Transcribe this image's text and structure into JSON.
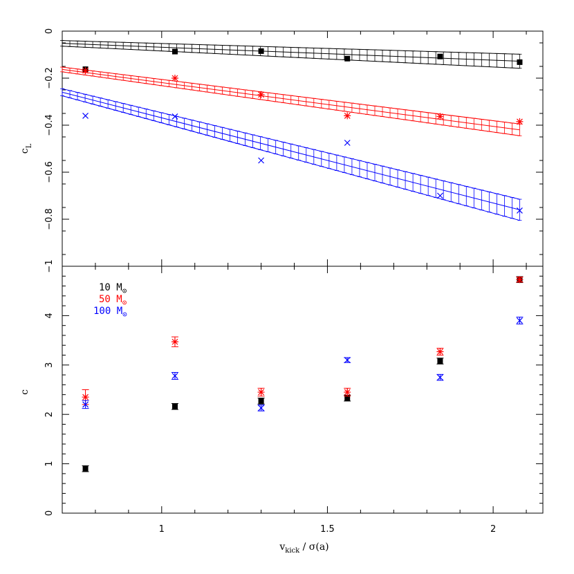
{
  "chart_data": [
    {
      "type": "scatter",
      "panel": "top",
      "ylabel": "c",
      "ylabel_sub": "L",
      "xlim": [
        0.7,
        2.15
      ],
      "ylim": [
        -1.0,
        0.0
      ],
      "xticks": [
        1,
        1.5,
        2
      ],
      "yticks": [
        0,
        -0.2,
        -0.4,
        -0.6,
        -0.8
      ],
      "ytick_labels": [
        "0",
        "−0.2",
        "−0.4",
        "−0.6",
        "−0.8"
      ],
      "bottom_tick_label": "−1",
      "x": [
        0.77,
        1.04,
        1.3,
        1.56,
        1.84,
        2.08
      ],
      "series": [
        {
          "name": "10 M⊙",
          "color": "#000000",
          "marker": "filled-square",
          "values": [
            -0.162,
            -0.087,
            -0.085,
            -0.117,
            -0.108,
            -0.132
          ],
          "fit": {
            "start": [
              0.7,
              -0.052
            ],
            "end": [
              2.08,
              -0.128
            ],
            "band_start": 0.012,
            "band_end": 0.03
          }
        },
        {
          "name": "50 M⊙",
          "color": "#ff0000",
          "marker": "star",
          "values": [
            -0.168,
            -0.2,
            -0.27,
            -0.36,
            -0.363,
            -0.385
          ],
          "fit": {
            "start": [
              0.7,
              -0.163
            ],
            "end": [
              2.08,
              -0.42
            ],
            "band_start": 0.01,
            "band_end": 0.025
          }
        },
        {
          "name": "100 M⊙",
          "color": "#0000ff",
          "marker": "cross",
          "values": [
            -0.36,
            -0.363,
            -0.55,
            -0.475,
            -0.7,
            -0.763
          ],
          "fit": {
            "start": [
              0.7,
              -0.26
            ],
            "end": [
              2.08,
              -0.76
            ],
            "band_start": 0.015,
            "band_end": 0.045
          }
        }
      ]
    },
    {
      "type": "scatter",
      "panel": "bottom",
      "xlabel": "v",
      "xlabel_sub": "kick",
      "xlabel_rest": " / σ(a)",
      "ylabel": "c",
      "xlim": [
        0.7,
        2.15
      ],
      "ylim": [
        0,
        5
      ],
      "xticks": [
        1,
        1.5,
        2
      ],
      "xtick_labels": [
        "1",
        "1.5",
        "2"
      ],
      "yticks": [
        0,
        1,
        2,
        3,
        4
      ],
      "ytick_labels": [
        "0",
        "1",
        "2",
        "3",
        "4"
      ],
      "x": [
        0.77,
        1.04,
        1.3,
        1.56,
        1.84,
        2.08
      ],
      "series": [
        {
          "name": "10 M⊙",
          "color": "#000000",
          "marker": "filled-square",
          "values": [
            0.9,
            2.16,
            2.27,
            2.33,
            3.08,
            4.73
          ],
          "err": [
            0.06,
            0.06,
            0.06,
            0.06,
            0.06,
            0.06
          ]
        },
        {
          "name": "50 M⊙",
          "color": "#ff0000",
          "marker": "star",
          "values": [
            2.35,
            3.47,
            2.45,
            2.45,
            3.27,
            4.73
          ],
          "err": [
            0.15,
            0.1,
            0.08,
            0.08,
            0.07,
            0.05
          ]
        },
        {
          "name": "100 M⊙",
          "color": "#0000ff",
          "marker": "cross",
          "values": [
            2.2,
            2.78,
            2.13,
            3.1,
            2.75,
            3.9
          ],
          "err": [
            0.08,
            0.07,
            0.06,
            0.05,
            0.06,
            0.07
          ]
        }
      ],
      "legend": [
        {
          "text": "10  M",
          "sub": "⊙",
          "color": "#000000"
        },
        {
          "text": "50  M",
          "sub": "⊙",
          "color": "#ff0000"
        },
        {
          "text": "100 M",
          "sub": "⊙",
          "color": "#0000ff"
        }
      ],
      "legend_position": "top-left"
    }
  ]
}
